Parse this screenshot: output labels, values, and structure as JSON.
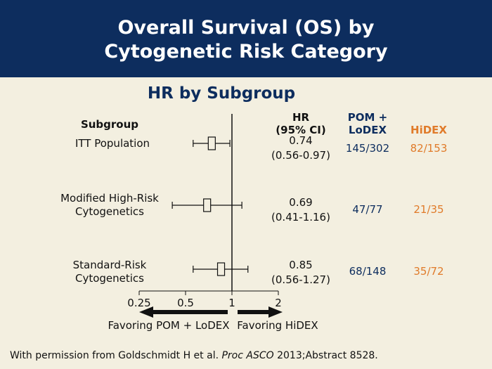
{
  "title_line1": "Overall Survival (OS) by",
  "title_line2": "Cytogenetic Risk Category",
  "subtitle": "HR by Subgroup",
  "columns": {
    "subgroup": "Subgroup",
    "hr_line1": "HR",
    "hr_line2": "(95% CI)",
    "pom_line1": "POM +",
    "pom_line2": "LoDEX",
    "hidex": "HiDEX"
  },
  "rows": [
    {
      "label_line1": "ITT Population",
      "label_line2": "",
      "hr": "0.74",
      "ci": "(0.56-0.97)",
      "pom": "145/302",
      "hidex": "82/153"
    },
    {
      "label_line1": "Modified High-Risk",
      "label_line2": "Cytogenetics",
      "hr": "0.69",
      "ci": "(0.41-1.16)",
      "pom": "47/77",
      "hidex": "21/35"
    },
    {
      "label_line1": "Standard-Risk",
      "label_line2": "Cytogenetics",
      "hr": "0.85",
      "ci": "(0.56-1.27)",
      "pom": "68/148",
      "hidex": "35/72"
    }
  ],
  "arrows": {
    "left": "Favoring POM + LoDEX",
    "right": "Favoring HiDEX"
  },
  "footnote_prefix": "With permission from Goldschmidt H et al. ",
  "footnote_journal": "Proc ASCO",
  "footnote_suffix": " 2013;Abstract 8528.",
  "colors": {
    "navy": "#0d2d5e",
    "orange": "#e07b2a",
    "background": "#f3efe0"
  },
  "chart_data": {
    "type": "forest",
    "scale": "log2",
    "reference_line": 1,
    "x_ticks": [
      0.25,
      0.5,
      1,
      2
    ],
    "x_tick_labels": [
      "0.25",
      "0.5",
      "1",
      "2"
    ],
    "points": [
      {
        "hr": 0.74,
        "lower": 0.56,
        "upper": 0.97
      },
      {
        "hr": 0.69,
        "lower": 0.41,
        "upper": 1.16
      },
      {
        "hr": 0.85,
        "lower": 0.56,
        "upper": 1.27
      }
    ]
  }
}
